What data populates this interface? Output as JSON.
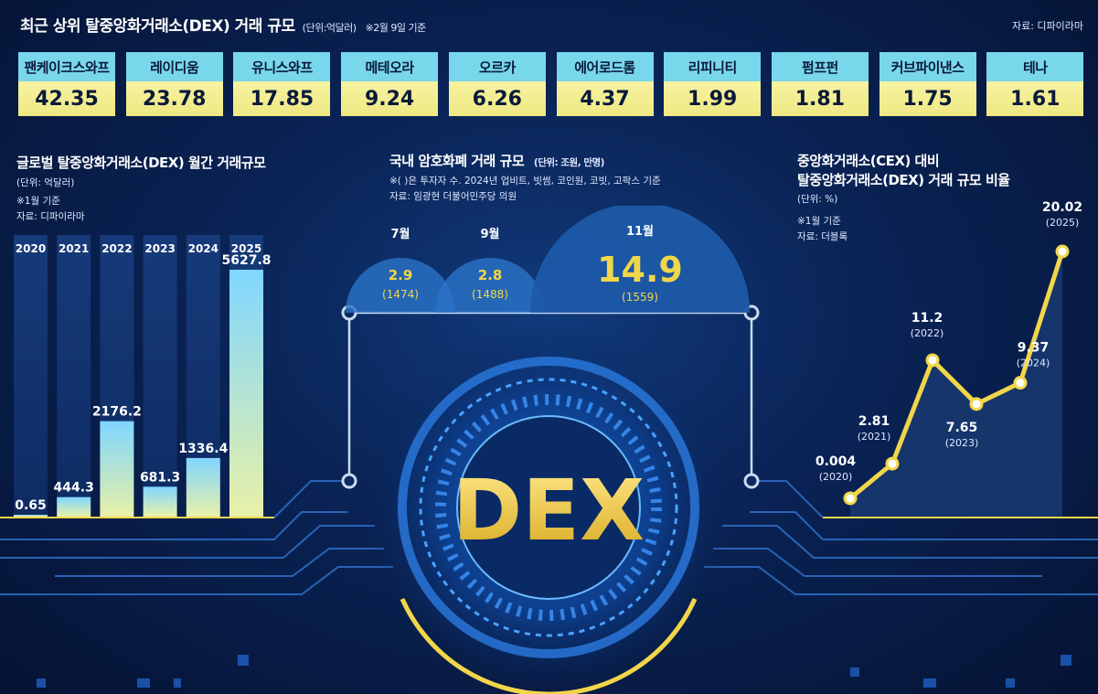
{
  "header": {
    "title": "최근 상위 탈중앙화거래소(DEX) 거래 규모",
    "unit": "(단위:억달러)",
    "date_note": "※2월 9일 기준",
    "source": "자료: 디파이라마"
  },
  "dex_ranking": [
    {
      "name": "팬케이크스와프",
      "value": "42.35"
    },
    {
      "name": "레이디움",
      "value": "23.78"
    },
    {
      "name": "유니스와프",
      "value": "17.85"
    },
    {
      "name": "메테오라",
      "value": "9.24"
    },
    {
      "name": "오르카",
      "value": "6.26"
    },
    {
      "name": "에어로드롬",
      "value": "4.37"
    },
    {
      "name": "리피니티",
      "value": "1.99"
    },
    {
      "name": "펌프펀",
      "value": "1.81"
    },
    {
      "name": "커브파이낸스",
      "value": "1.75"
    },
    {
      "name": "테나",
      "value": "1.61"
    }
  ],
  "left_panel": {
    "title": "글로벌 탈중앙화거래소(DEX) 월간 거래규모",
    "unit": "(단위: 억달러)",
    "note": "※1월 기준",
    "source": "자료: 디파이라마"
  },
  "middle_panel": {
    "title": "국내 암호화폐 거래 규모",
    "unit": "(단위: 조원, 만명)",
    "note": "※( )은 투자자 수. 2024년 업비트, 빗썸, 코인원, 코빗, 고팍스 기준",
    "source": "자료: 임광현 더불어민주당 의원"
  },
  "right_panel": {
    "title_line1": "중앙화거래소(CEX) 대비",
    "title_line2": "탈중앙화거래소(DEX) 거래 규모 비율",
    "unit": "(단위: %)",
    "note": "※1월 기준",
    "source": "자료: 더블록"
  },
  "center_graphic": {
    "logo_text": "DEX"
  },
  "colors": {
    "accent_yellow": "#f1d64a",
    "card_name_bg": "#79d7ec",
    "card_value_bg": "#f3ee93",
    "background": "#071a42"
  },
  "chart_data": [
    {
      "type": "bar",
      "categories": [
        "2020",
        "2021",
        "2022",
        "2023",
        "2024",
        "2025"
      ],
      "values": [
        0.65,
        444.3,
        2176.2,
        681.3,
        1336.4,
        5627.8
      ],
      "value_labels": [
        "0.65",
        "444.3",
        "2176.2",
        "681.3",
        "1336.4",
        "5627.8"
      ],
      "ylim": [
        0,
        5627.8
      ]
    },
    {
      "type": "bubble",
      "categories": [
        "7월",
        "9월",
        "11월"
      ],
      "values": [
        2.9,
        2.8,
        14.9
      ],
      "value_labels": [
        "2.9",
        "2.8",
        "14.9"
      ],
      "investors": [
        "(1474)",
        "(1488)",
        "(1559)"
      ]
    },
    {
      "type": "line",
      "x": [
        "2020",
        "2021",
        "2022",
        "2023",
        "2024",
        "2025"
      ],
      "values": [
        0.004,
        2.81,
        11.2,
        7.65,
        9.37,
        20.02
      ],
      "value_labels": [
        "0.004",
        "2.81",
        "11.2",
        "7.65",
        "9.37",
        "20.02"
      ],
      "year_labels": [
        "(2020)",
        "(2021)",
        "(2022)",
        "(2023)",
        "(2024)",
        "(2025)"
      ]
    }
  ]
}
